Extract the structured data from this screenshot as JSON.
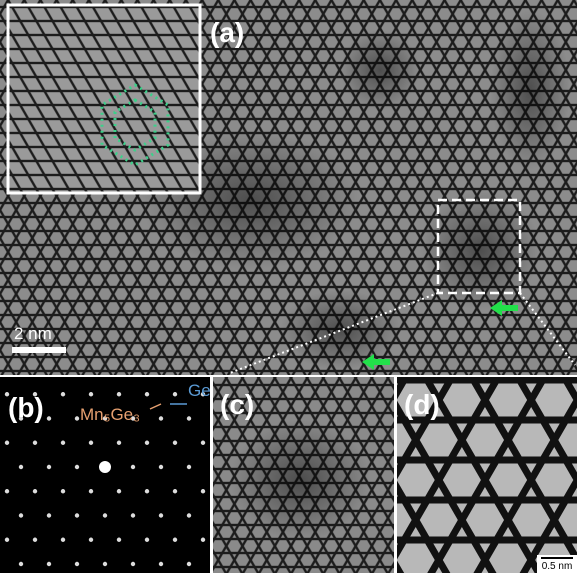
{
  "panels": {
    "a": {
      "label": "(a)",
      "scale_bar": "2 nm"
    },
    "b": {
      "label": "(b)",
      "annotation_1": "Mn₅Ge₃",
      "annotation_2": "Ge"
    },
    "c": {
      "label": "(c)"
    },
    "d": {
      "label": "(d)",
      "scale_bar": "0.5 nm"
    }
  }
}
